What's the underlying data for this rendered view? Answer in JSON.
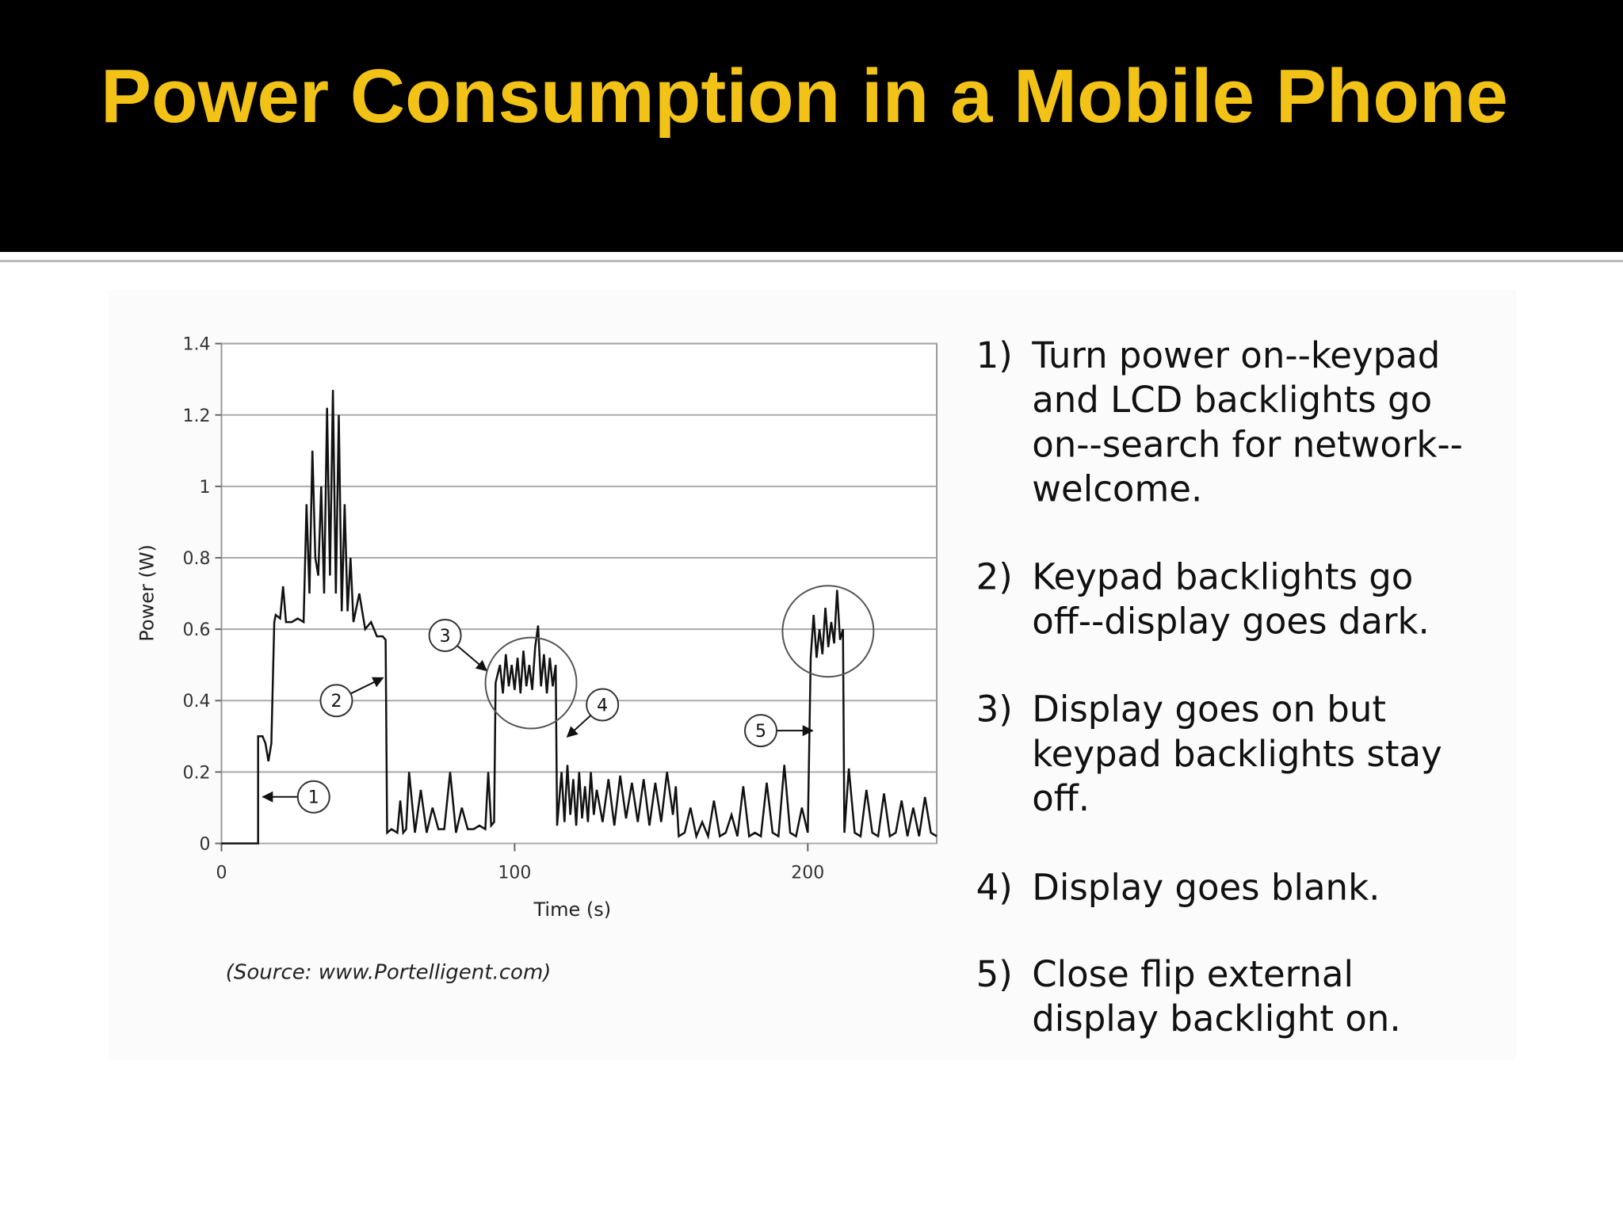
{
  "title": "Power Consumption in a Mobile Phone",
  "source": "(Source: www.Portelligent.com)",
  "items": [
    {
      "number": "1)",
      "lines": [
        "Turn power on--keypad",
        "and LCD backlights go",
        "on--search for network--",
        "welcome."
      ]
    },
    {
      "number": "2)",
      "lines": [
        "Keypad backlights go",
        "off--display goes dark."
      ]
    },
    {
      "number": "3)",
      "lines": [
        "Display goes on but",
        "keypad backlights stay",
        "off."
      ]
    },
    {
      "number": "4)",
      "lines": [
        "Display goes blank."
      ]
    },
    {
      "number": "5)",
      "lines": [
        "Close flip external",
        "display backlight on."
      ]
    }
  ],
  "chart_data": {
    "type": "line",
    "x_label": "Time (s)",
    "y_label": "Power (W)",
    "color": "#111111",
    "grid": true,
    "xlim": [
      0,
      244
    ],
    "xticks": [
      0,
      100,
      200
    ],
    "ylim": [
      0,
      1.4
    ],
    "yticks": [
      0,
      0.2,
      0.4,
      0.6,
      0.8,
      1,
      1.2,
      1.4
    ],
    "annotations": [
      "1",
      "2",
      "3",
      "4",
      "5"
    ],
    "x": [
      0,
      12.5,
      12.5,
      14,
      15,
      16,
      17,
      18,
      18.5,
      20,
      21,
      22,
      24,
      26,
      28,
      29,
      30,
      31,
      32,
      33,
      34,
      35,
      36,
      37,
      38,
      39,
      40,
      41,
      42,
      43,
      44,
      45,
      47,
      49,
      51,
      53,
      55,
      56,
      56.5,
      58,
      60,
      61,
      62,
      63,
      64,
      66,
      68,
      70,
      72,
      74,
      76,
      78,
      80,
      82,
      84,
      86,
      88,
      90,
      91,
      92,
      93,
      93.5,
      95,
      96,
      97,
      98,
      99,
      100,
      101,
      102,
      103,
      104,
      105,
      106,
      107,
      108,
      109,
      110,
      111,
      112,
      113,
      114,
      114.5,
      116,
      117,
      118,
      119,
      120,
      121,
      122,
      123,
      124,
      125,
      126,
      127,
      128,
      130,
      132,
      134,
      136,
      138,
      140,
      142,
      144,
      146,
      148,
      150,
      152,
      154,
      155,
      156,
      158,
      160,
      162,
      164,
      166,
      168,
      170,
      172,
      174,
      176,
      178,
      180,
      182,
      184,
      186,
      188,
      190,
      192,
      194,
      196,
      198,
      200,
      201,
      202,
      203,
      204,
      205,
      206,
      207,
      208,
      209,
      210,
      211,
      212,
      212.5,
      214,
      216,
      218,
      220,
      222,
      224,
      226,
      228,
      230,
      232,
      234,
      236,
      238,
      240,
      242,
      244
    ],
    "values": [
      0,
      0,
      0.3,
      0.3,
      0.28,
      0.23,
      0.28,
      0.62,
      0.64,
      0.63,
      0.72,
      0.62,
      0.62,
      0.63,
      0.62,
      0.95,
      0.7,
      1.1,
      0.8,
      0.75,
      1.0,
      0.7,
      1.22,
      0.75,
      1.27,
      0.7,
      1.2,
      0.65,
      0.95,
      0.65,
      0.8,
      0.62,
      0.7,
      0.6,
      0.62,
      0.58,
      0.58,
      0.57,
      0.03,
      0.04,
      0.03,
      0.12,
      0.03,
      0.04,
      0.2,
      0.03,
      0.15,
      0.03,
      0.1,
      0.04,
      0.04,
      0.2,
      0.03,
      0.1,
      0.04,
      0.04,
      0.05,
      0.04,
      0.2,
      0.05,
      0.06,
      0.45,
      0.5,
      0.42,
      0.53,
      0.44,
      0.5,
      0.43,
      0.52,
      0.42,
      0.54,
      0.44,
      0.5,
      0.43,
      0.55,
      0.61,
      0.44,
      0.53,
      0.42,
      0.52,
      0.44,
      0.5,
      0.05,
      0.2,
      0.06,
      0.22,
      0.08,
      0.18,
      0.05,
      0.2,
      0.07,
      0.16,
      0.06,
      0.2,
      0.08,
      0.15,
      0.06,
      0.18,
      0.05,
      0.19,
      0.07,
      0.17,
      0.06,
      0.18,
      0.05,
      0.17,
      0.06,
      0.2,
      0.08,
      0.16,
      0.02,
      0.03,
      0.1,
      0.02,
      0.06,
      0.02,
      0.12,
      0.02,
      0.03,
      0.08,
      0.02,
      0.16,
      0.02,
      0.03,
      0.02,
      0.17,
      0.03,
      0.02,
      0.22,
      0.03,
      0.02,
      0.1,
      0.03,
      0.52,
      0.64,
      0.52,
      0.6,
      0.53,
      0.66,
      0.55,
      0.62,
      0.56,
      0.71,
      0.57,
      0.6,
      0.03,
      0.21,
      0.03,
      0.02,
      0.15,
      0.03,
      0.02,
      0.14,
      0.02,
      0.03,
      0.12,
      0.02,
      0.1,
      0.02,
      0.13,
      0.03,
      0.02
    ]
  }
}
